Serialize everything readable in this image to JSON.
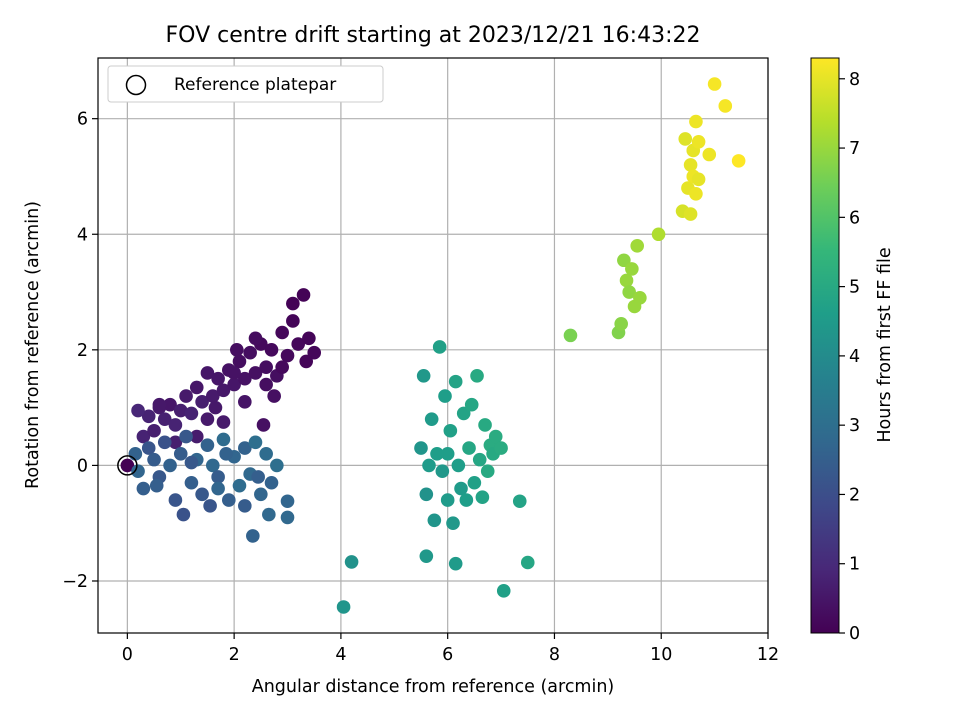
{
  "chart_data": {
    "type": "scatter",
    "title": "FOV centre drift starting at 2023/12/21 16:43:22",
    "xlabel": "Angular distance from reference (arcmin)",
    "ylabel": "Rotation from reference (arcmin)",
    "xlim": [
      -0.55,
      12.0
    ],
    "ylim": [
      -2.9,
      7.05
    ],
    "xticks": [
      0,
      2,
      4,
      6,
      8,
      10,
      12
    ],
    "yticks": [
      -2,
      0,
      2,
      4,
      6
    ],
    "xtick_labels": [
      "0",
      "2",
      "4",
      "6",
      "8",
      "10",
      "12"
    ],
    "ytick_labels": [
      "−2",
      "0",
      "2",
      "4",
      "6"
    ],
    "grid": true,
    "legend": {
      "position": "top-left",
      "entries": [
        "Reference platepar"
      ]
    },
    "reference_point": {
      "x": 0,
      "y": 0
    },
    "colorbar": {
      "label": "Hours from first FF file",
      "range": [
        0,
        8.3
      ],
      "ticks": [
        0,
        1,
        2,
        3,
        4,
        5,
        6,
        7,
        8
      ],
      "tick_labels": [
        "0",
        "1",
        "2",
        "3",
        "4",
        "5",
        "6",
        "7",
        "8"
      ],
      "colormap": "viridis"
    },
    "points": [
      [
        0.0,
        0.0,
        0.0
      ],
      [
        0.3,
        0.5,
        0.8
      ],
      [
        0.4,
        0.85,
        0.8
      ],
      [
        0.5,
        0.6,
        0.7
      ],
      [
        0.6,
        1.0,
        0.6
      ],
      [
        0.7,
        0.8,
        0.75
      ],
      [
        0.8,
        1.05,
        0.5
      ],
      [
        0.9,
        0.7,
        0.8
      ],
      [
        1.0,
        0.95,
        0.7
      ],
      [
        1.1,
        1.2,
        0.6
      ],
      [
        1.2,
        0.9,
        0.8
      ],
      [
        1.3,
        1.35,
        0.5
      ],
      [
        1.4,
        1.1,
        0.7
      ],
      [
        1.5,
        1.6,
        0.5
      ],
      [
        1.6,
        1.2,
        0.6
      ],
      [
        1.7,
        1.5,
        0.5
      ],
      [
        1.8,
        1.3,
        0.55
      ],
      [
        1.9,
        1.65,
        0.4
      ],
      [
        2.0,
        1.4,
        0.5
      ],
      [
        2.1,
        1.8,
        0.3
      ],
      [
        2.2,
        1.5,
        0.4
      ],
      [
        2.3,
        1.95,
        0.3
      ],
      [
        2.4,
        1.6,
        0.35
      ],
      [
        2.5,
        2.1,
        0.2
      ],
      [
        2.6,
        1.7,
        0.3
      ],
      [
        2.7,
        2.0,
        0.2
      ],
      [
        2.8,
        1.55,
        0.3
      ],
      [
        2.9,
        2.3,
        0.15
      ],
      [
        3.0,
        1.9,
        0.2
      ],
      [
        3.1,
        2.5,
        0.1
      ],
      [
        3.2,
        2.1,
        0.15
      ],
      [
        3.3,
        2.95,
        0.05
      ],
      [
        3.4,
        2.2,
        0.1
      ],
      [
        3.5,
        1.95,
        0.15
      ],
      [
        3.1,
        2.8,
        0.05
      ],
      [
        2.6,
        1.4,
        0.3
      ],
      [
        2.4,
        2.2,
        0.25
      ],
      [
        2.2,
        1.1,
        0.45
      ],
      [
        2.0,
        1.6,
        0.4
      ],
      [
        1.8,
        0.75,
        0.6
      ],
      [
        1.5,
        0.8,
        0.6
      ],
      [
        1.3,
        0.5,
        0.65
      ],
      [
        0.9,
        0.4,
        0.7
      ],
      [
        0.2,
        0.95,
        0.9
      ],
      [
        0.6,
        1.05,
        0.55
      ],
      [
        2.55,
        0.7,
        0.35
      ],
      [
        2.05,
        2.0,
        0.3
      ],
      [
        2.75,
        1.2,
        0.35
      ],
      [
        1.65,
        1.0,
        0.55
      ],
      [
        3.35,
        1.8,
        0.12
      ],
      [
        2.9,
        1.7,
        0.2
      ],
      [
        0.15,
        0.2,
        2.6
      ],
      [
        0.2,
        -0.1,
        2.7
      ],
      [
        0.3,
        -0.4,
        2.5
      ],
      [
        0.4,
        0.3,
        2.2
      ],
      [
        0.5,
        0.1,
        2.4
      ],
      [
        0.6,
        -0.2,
        2.3
      ],
      [
        0.7,
        0.4,
        2.1
      ],
      [
        0.8,
        0.0,
        2.6
      ],
      [
        0.9,
        -0.6,
        2.2
      ],
      [
        1.0,
        0.2,
        2.4
      ],
      [
        1.05,
        -0.85,
        2.1
      ],
      [
        1.1,
        0.5,
        2.3
      ],
      [
        1.2,
        -0.3,
        2.5
      ],
      [
        1.3,
        0.1,
        2.7
      ],
      [
        1.4,
        -0.5,
        2.3
      ],
      [
        1.5,
        0.35,
        2.6
      ],
      [
        1.55,
        -0.7,
        2.2
      ],
      [
        1.6,
        0.0,
        2.8
      ],
      [
        1.7,
        -0.2,
        2.4
      ],
      [
        1.8,
        0.45,
        2.9
      ],
      [
        1.9,
        -0.6,
        2.5
      ],
      [
        2.0,
        0.15,
        2.7
      ],
      [
        2.1,
        -0.35,
        2.9
      ],
      [
        2.2,
        0.3,
        2.6
      ],
      [
        2.3,
        -0.15,
        2.8
      ],
      [
        2.4,
        0.4,
        3.0
      ],
      [
        2.35,
        -1.22,
        2.6
      ],
      [
        2.5,
        -0.5,
        2.7
      ],
      [
        2.6,
        0.2,
        2.9
      ],
      [
        2.7,
        -0.3,
        2.6
      ],
      [
        2.65,
        -0.85,
        2.8
      ],
      [
        2.8,
        0.0,
        3.0
      ],
      [
        3.0,
        -0.62,
        2.7
      ],
      [
        3.0,
        -0.9,
        2.8
      ],
      [
        2.2,
        -0.7,
        2.4
      ],
      [
        1.7,
        -0.4,
        2.7
      ],
      [
        1.2,
        0.05,
        2.3
      ],
      [
        0.55,
        -0.35,
        2.5
      ],
      [
        1.85,
        0.2,
        2.6
      ],
      [
        2.45,
        -0.2,
        2.5
      ],
      [
        4.05,
        -2.45,
        4.3
      ],
      [
        4.2,
        -1.67,
        4.2
      ],
      [
        5.6,
        -1.57,
        4.4
      ],
      [
        6.15,
        -1.7,
        4.5
      ],
      [
        5.5,
        0.3,
        4.3
      ],
      [
        5.55,
        1.55,
        4.4
      ],
      [
        5.6,
        -0.5,
        4.2
      ],
      [
        5.7,
        0.8,
        4.5
      ],
      [
        5.75,
        -0.95,
        4.3
      ],
      [
        5.8,
        0.2,
        4.6
      ],
      [
        5.85,
        2.05,
        4.7
      ],
      [
        5.9,
        -0.1,
        4.4
      ],
      [
        5.95,
        1.2,
        4.6
      ],
      [
        6.0,
        -0.6,
        4.5
      ],
      [
        6.05,
        0.6,
        4.7
      ],
      [
        6.1,
        -1.0,
        4.4
      ],
      [
        6.15,
        1.45,
        4.8
      ],
      [
        6.2,
        0.0,
        4.6
      ],
      [
        6.25,
        -0.4,
        4.5
      ],
      [
        6.3,
        0.9,
        4.8
      ],
      [
        6.35,
        -0.6,
        4.6
      ],
      [
        6.4,
        0.3,
        4.9
      ],
      [
        6.45,
        1.05,
        4.9
      ],
      [
        6.5,
        -0.3,
        4.7
      ],
      [
        6.55,
        1.55,
        5.0
      ],
      [
        6.6,
        0.1,
        4.9
      ],
      [
        6.65,
        -0.55,
        4.8
      ],
      [
        6.7,
        0.7,
        5.0
      ],
      [
        6.75,
        -0.1,
        5.0
      ],
      [
        6.8,
        0.35,
        5.1
      ],
      [
        6.85,
        0.2,
        5.0
      ],
      [
        6.9,
        0.5,
        5.1
      ],
      [
        7.0,
        0.3,
        5.1
      ],
      [
        7.05,
        -2.17,
        4.7
      ],
      [
        7.35,
        -0.62,
        4.8
      ],
      [
        7.5,
        -1.68,
        4.9
      ],
      [
        5.65,
        0.0,
        4.5
      ],
      [
        6.0,
        0.2,
        4.6
      ],
      [
        8.3,
        2.25,
        6.6
      ],
      [
        9.2,
        2.3,
        6.7
      ],
      [
        9.25,
        2.45,
        6.8
      ],
      [
        9.3,
        3.55,
        6.9
      ],
      [
        9.35,
        3.2,
        7.0
      ],
      [
        9.4,
        3.0,
        6.9
      ],
      [
        9.45,
        3.4,
        7.0
      ],
      [
        9.5,
        2.75,
        7.0
      ],
      [
        9.55,
        3.8,
        7.1
      ],
      [
        9.6,
        2.9,
        7.0
      ],
      [
        9.95,
        4.0,
        7.3
      ],
      [
        10.4,
        4.4,
        7.8
      ],
      [
        10.45,
        5.65,
        7.9
      ],
      [
        10.5,
        4.8,
        8.0
      ],
      [
        10.55,
        5.2,
        8.0
      ],
      [
        10.55,
        4.35,
        7.9
      ],
      [
        10.6,
        5.0,
        8.1
      ],
      [
        10.6,
        5.45,
        8.0
      ],
      [
        10.65,
        4.7,
        8.1
      ],
      [
        10.65,
        5.95,
        8.1
      ],
      [
        10.7,
        5.6,
        8.1
      ],
      [
        10.7,
        4.95,
        8.0
      ],
      [
        10.9,
        5.38,
        8.1
      ],
      [
        11.0,
        6.6,
        8.2
      ],
      [
        11.2,
        6.22,
        8.2
      ],
      [
        11.45,
        5.27,
        8.3
      ]
    ]
  }
}
